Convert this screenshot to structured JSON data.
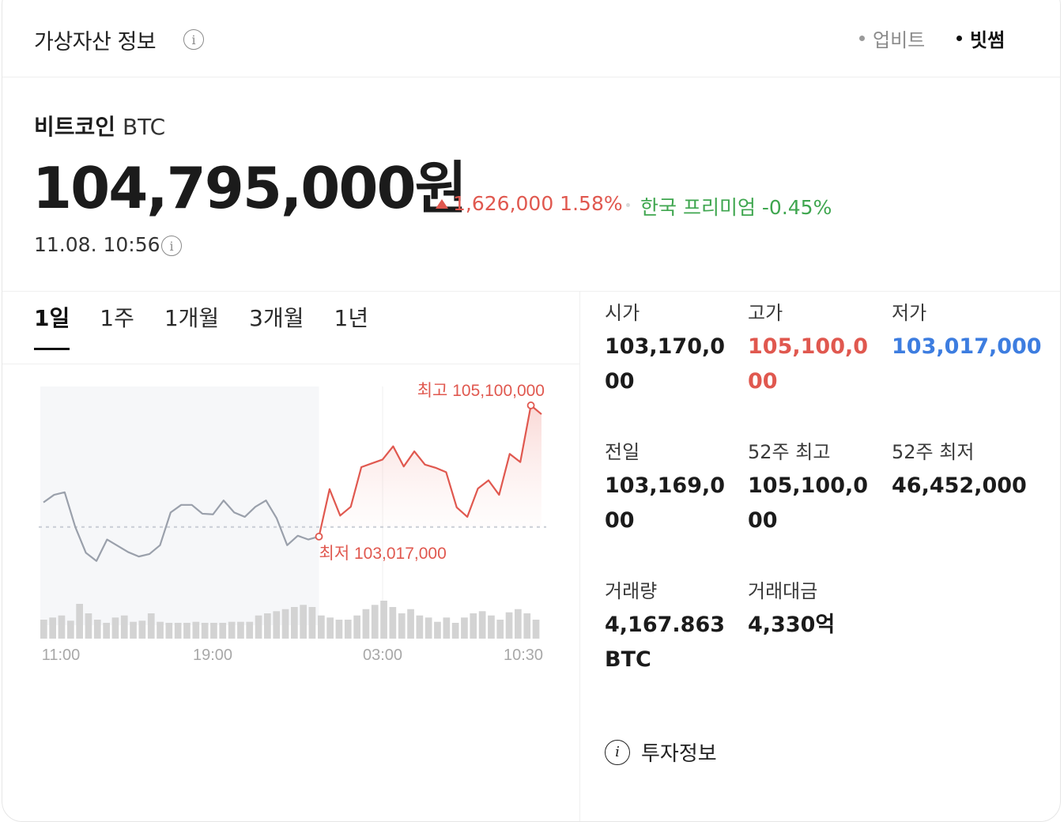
{
  "header": {
    "title": "가상자산 정보",
    "sources": [
      {
        "label": "업비트",
        "active": false
      },
      {
        "label": "빗썸",
        "active": true
      }
    ]
  },
  "coin": {
    "name": "비트코인",
    "symbol": "BTC",
    "price": "104,795,000원",
    "change": "1,626,000 1.58%",
    "premium": "한국 프리미엄 -0.45%",
    "timestamp": "11.08. 10:56"
  },
  "tabs": [
    "1일",
    "1주",
    "1개월",
    "3개월",
    "1년"
  ],
  "active_tab": "1일",
  "stats": {
    "open": {
      "label": "시가",
      "value": "103,170,000"
    },
    "high": {
      "label": "고가",
      "value": "105,100,000"
    },
    "low": {
      "label": "저가",
      "value": "103,017,000"
    },
    "prev_close": {
      "label": "전일",
      "value": "103,169,000"
    },
    "week52_high": {
      "label": "52주 최고",
      "value": "105,100,000"
    },
    "week52_low": {
      "label": "52주 최저",
      "value": "46,452,000"
    },
    "volume": {
      "label": "거래량",
      "value": "4,167.863 BTC"
    },
    "amount": {
      "label": "거래대금",
      "value": "4,330억"
    }
  },
  "invest_info": "투자정보",
  "colors": {
    "up": "#e0584f",
    "down": "#3d7de0",
    "premium": "#3fa64f",
    "past_line": "#9aa0ab"
  },
  "chart_data": {
    "type": "line",
    "x_ticks": [
      "11:00",
      "19:00",
      "03:00",
      "10:30"
    ],
    "high_label": "최고 105,100,000",
    "low_label": "최저 103,017,000",
    "reference_value": 103169000,
    "ylim": [
      102300000,
      105400000
    ],
    "past_series": [
      103560000,
      103680000,
      103720000,
      103170000,
      102760000,
      102630000,
      102970000,
      102870000,
      102770000,
      102700000,
      102740000,
      102880000,
      103400000,
      103520000,
      103520000,
      103380000,
      103370000,
      103590000,
      103400000,
      103330000,
      103490000,
      103590000,
      103310000,
      102880000,
      103030000,
      102970000,
      103017000
    ],
    "today_series": [
      103017000,
      103770000,
      103350000,
      103490000,
      104120000,
      104180000,
      104240000,
      104450000,
      104130000,
      104370000,
      104160000,
      104110000,
      104040000,
      103480000,
      103330000,
      103780000,
      103910000,
      103680000,
      104330000,
      104200000,
      105100000,
      104960000
    ],
    "volume": [
      18,
      20,
      22,
      17,
      33,
      24,
      18,
      15,
      20,
      22,
      16,
      17,
      24,
      16,
      15,
      15,
      15,
      16,
      15,
      15,
      15,
      16,
      16,
      16,
      22,
      24,
      26,
      28,
      30,
      32,
      30,
      22,
      20,
      18,
      18,
      22,
      28,
      32,
      36,
      30,
      24,
      28,
      22,
      20,
      16,
      20,
      15,
      20,
      24,
      26,
      22,
      18,
      25,
      28,
      24,
      18
    ]
  }
}
